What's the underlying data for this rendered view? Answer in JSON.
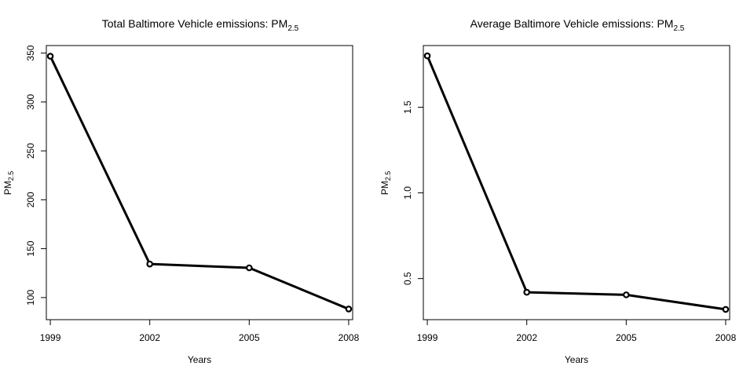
{
  "chart_data": [
    {
      "type": "line",
      "title": "Total Baltimore Vehicle emissions: PM",
      "title_subscript": "2.5",
      "xlabel": "Years",
      "ylabel": "PM",
      "ylabel_subscript": "2.5",
      "x": [
        1999,
        2002,
        2005,
        2008
      ],
      "xticks": [
        "1999",
        "2002",
        "2005",
        "2008"
      ],
      "y": [
        346.8,
        134.3,
        130.4,
        88.3
      ],
      "yticks": [
        100,
        150,
        200,
        250,
        300,
        350
      ],
      "ytick_labels": [
        "100",
        "150",
        "200",
        "250",
        "300",
        "350"
      ],
      "xlim": [
        1998.88,
        2008.12
      ],
      "ylim": [
        77.4,
        357.7
      ],
      "line_color": "#000000",
      "marker": "open-circle",
      "grid": false
    },
    {
      "type": "line",
      "title": "Average Baltimore Vehicle emissions: PM",
      "title_subscript": "2.5",
      "xlabel": "Years",
      "ylabel": "PM",
      "ylabel_subscript": "2.5",
      "x": [
        1999,
        2002,
        2005,
        2008
      ],
      "xticks": [
        "1999",
        "2002",
        "2005",
        "2008"
      ],
      "y": [
        1.8,
        0.42,
        0.405,
        0.32
      ],
      "yticks": [
        0.5,
        1.0,
        1.5
      ],
      "ytick_labels": [
        "0.5",
        "1.0",
        "1.5"
      ],
      "xlim": [
        1998.88,
        2008.12
      ],
      "ylim": [
        0.26,
        1.86
      ],
      "line_color": "#000000",
      "marker": "open-circle",
      "grid": false
    }
  ]
}
